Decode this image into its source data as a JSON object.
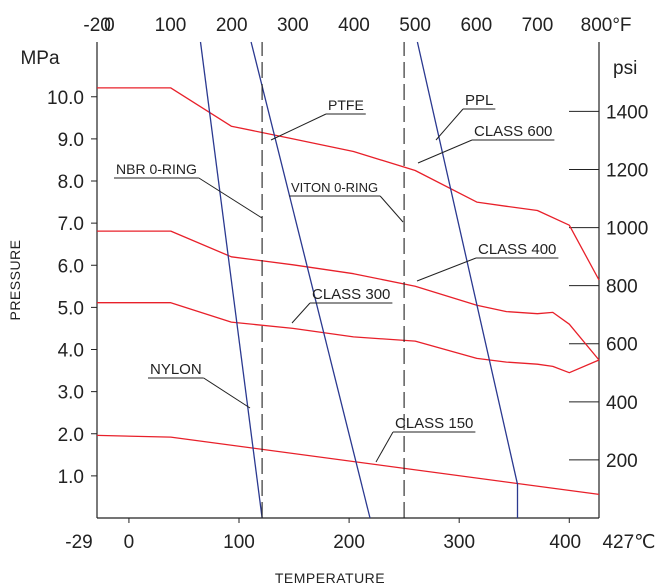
{
  "chart_data": {
    "type": "line",
    "title": "",
    "xlabel": "TEMPERATURE",
    "ylabel": "PRESSURE",
    "x_unit_bottom": "℃",
    "x_unit_top": "°F",
    "y_unit_left": "MPa",
    "y_unit_right": "psi",
    "xlim": [
      -29,
      427
    ],
    "ylim": [
      0,
      11.3
    ],
    "grid": false,
    "bottom_ticks": [
      "-29",
      "0",
      "100",
      "200",
      "300",
      "400",
      "427"
    ],
    "top_ticks": [
      "-20",
      "0",
      "100",
      "200",
      "300",
      "400",
      "500",
      "600",
      "700",
      "800"
    ],
    "left_ticks": [
      "1.0",
      "2.0",
      "3.0",
      "4.0",
      "5.0",
      "6.0",
      "7.0",
      "8.0",
      "9.0",
      "10.0"
    ],
    "right_ticks": [
      "200",
      "400",
      "600",
      "800",
      "1000",
      "1200",
      "1400"
    ],
    "colors": {
      "class_curves": "#e8202a",
      "material_lines": "#2b3990",
      "seal_limits": "#222222",
      "axes": "#222222"
    },
    "series": [
      {
        "name": "CLASS 150",
        "color": "#e8202a",
        "x": [
          -29,
          38,
          427
        ],
        "y": [
          1.96,
          1.92,
          0.56
        ]
      },
      {
        "name": "CLASS 300",
        "color": "#e8202a",
        "x": [
          -29,
          38,
          93,
          149,
          204,
          260,
          316,
          343,
          371,
          385,
          400,
          427
        ],
        "y": [
          5.11,
          5.11,
          4.65,
          4.5,
          4.3,
          4.2,
          3.79,
          3.7,
          3.65,
          3.6,
          3.45,
          3.75
        ]
      },
      {
        "name": "CLASS 400",
        "color": "#e8202a",
        "x": [
          -29,
          38,
          93,
          149,
          204,
          260,
          316,
          343,
          371,
          385,
          400,
          427
        ],
        "y": [
          6.81,
          6.81,
          6.2,
          6.01,
          5.8,
          5.5,
          5.05,
          4.9,
          4.85,
          4.88,
          4.6,
          3.75
        ]
      },
      {
        "name": "CLASS 600",
        "color": "#e8202a",
        "x": [
          -29,
          38,
          93,
          149,
          204,
          260,
          316,
          343,
          371,
          400,
          427
        ],
        "y": [
          10.21,
          10.21,
          9.3,
          9.0,
          8.7,
          8.25,
          7.5,
          7.4,
          7.3,
          6.95,
          5.65
        ]
      },
      {
        "name": "NYLON",
        "color": "#2b3990",
        "x": [
          65,
          121
        ],
        "y": [
          11.3,
          0
        ]
      },
      {
        "name": "PTFE",
        "color": "#2b3990",
        "x": [
          111,
          219
        ],
        "y": [
          11.3,
          0
        ]
      },
      {
        "name": "PPL",
        "color": "#2b3990",
        "x": [
          262,
          353,
          353
        ],
        "y": [
          11.3,
          0.8,
          0
        ]
      },
      {
        "name": "NBR 0-RING",
        "color": "#222222",
        "dashed": true,
        "x": [
          121,
          121
        ],
        "y": [
          0,
          11.3
        ]
      },
      {
        "name": "VITON 0-RING",
        "color": "#222222",
        "dashed": true,
        "x": [
          250,
          250
        ],
        "y": [
          0,
          11.3
        ]
      }
    ],
    "labels": [
      {
        "text": "PTFE",
        "for": "PTFE"
      },
      {
        "text": "PPL",
        "for": "PPL"
      },
      {
        "text": "CLASS 600",
        "for": "CLASS 600"
      },
      {
        "text": "NBR 0-RING",
        "for": "NBR 0-RING"
      },
      {
        "text": "VITON 0-RING",
        "for": "VITON 0-RING"
      },
      {
        "text": "CLASS 400",
        "for": "CLASS 400"
      },
      {
        "text": "CLASS 300",
        "for": "CLASS 300"
      },
      {
        "text": "NYLON",
        "for": "NYLON"
      },
      {
        "text": "CLASS 150",
        "for": "CLASS 150"
      }
    ]
  }
}
